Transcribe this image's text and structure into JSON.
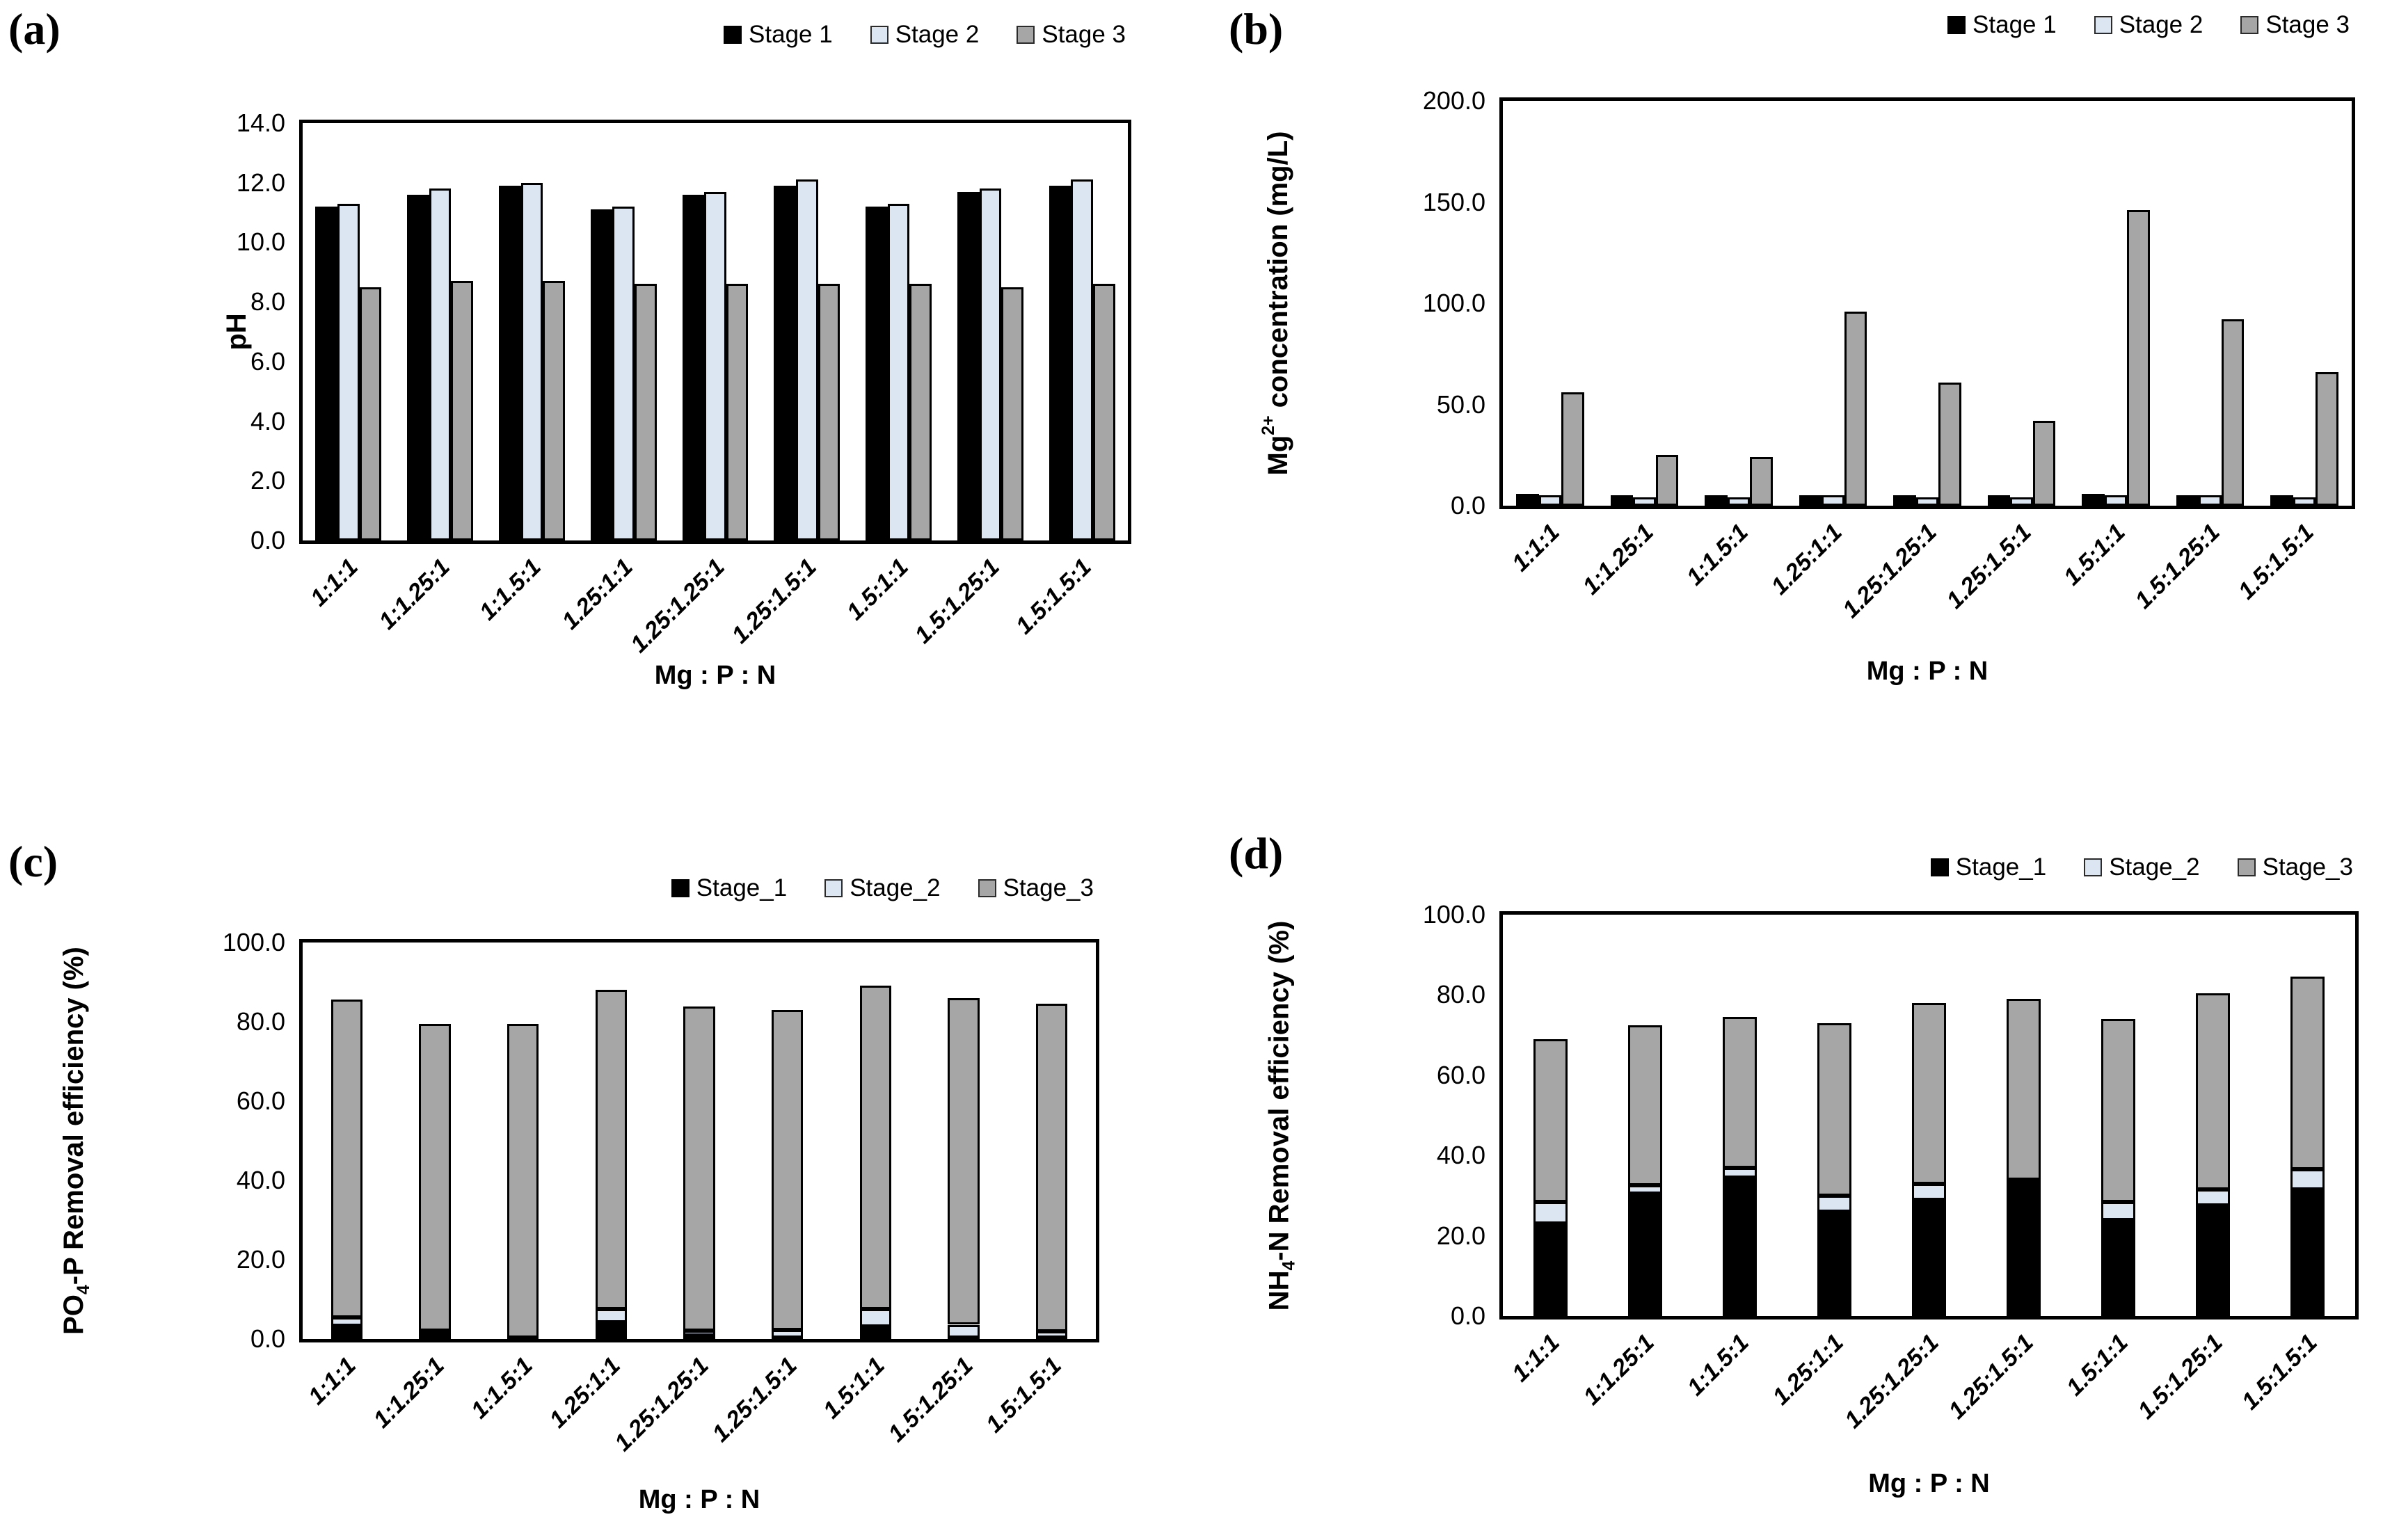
{
  "figure": {
    "panels": [
      {
        "id": "a",
        "letter": "(a)",
        "x_title": "Mg : P : N",
        "legend": [
          "Stage 1",
          "Stage 2",
          "Stage 3"
        ],
        "y_label_parts": [
          {
            "t": "pH"
          }
        ],
        "y_tick_decimals": 1
      },
      {
        "id": "b",
        "letter": "(b)",
        "x_title": "Mg : P : N",
        "legend": [
          "Stage 1",
          "Stage 2",
          "Stage 3"
        ],
        "y_label_parts": [
          {
            "t": "Mg"
          },
          {
            "sup": "2+"
          },
          {
            "t": " concentration (mg/L)"
          }
        ],
        "y_tick_decimals": 1
      },
      {
        "id": "c",
        "letter": "(c)",
        "x_title": "Mg : P : N",
        "legend": [
          "Stage_1",
          "Stage_2",
          "Stage_3"
        ],
        "y_label_parts": [
          {
            "t": "PO"
          },
          {
            "sub": "4"
          },
          {
            "t": "-P Removal efficiency (%)"
          }
        ],
        "y_tick_decimals": 1
      },
      {
        "id": "d",
        "letter": "(d)",
        "x_title": "Mg : P : N",
        "legend": [
          "Stage_1",
          "Stage_2",
          "Stage_3"
        ],
        "y_label_parts": [
          {
            "t": "NH"
          },
          {
            "sub": "4"
          },
          {
            "t": "-N Removal efficiency (%)"
          }
        ],
        "y_tick_decimals": 1
      }
    ]
  },
  "colors": {
    "stage1": "#000000",
    "stage2": "#dce6f2",
    "stage3": "#a6a6a6",
    "bar_border": "#000000",
    "swatch_border": "#2b2b2b",
    "frame": "#000000"
  },
  "chart_data": [
    {
      "type": "bar",
      "mode": "grouped",
      "panel": "a",
      "title": "",
      "xlabel": "Mg : P : N",
      "ylabel": "pH",
      "ylim": [
        0,
        14
      ],
      "ytick_step": 2,
      "grid": false,
      "legend_position": "top-right",
      "categories": [
        "1:1:1",
        "1:1.25:1",
        "1:1.5:1",
        "1.25:1:1",
        "1.25:1.25:1",
        "1.25:1.5:1",
        "1.5:1:1",
        "1.5:1.25:1",
        "1.5:1.5:1"
      ],
      "series": [
        {
          "name": "Stage 1",
          "color_key": "stage1",
          "values": [
            11.2,
            11.6,
            11.9,
            11.1,
            11.6,
            11.9,
            11.2,
            11.7,
            11.9
          ]
        },
        {
          "name": "Stage 2",
          "color_key": "stage2",
          "values": [
            11.3,
            11.8,
            12.0,
            11.2,
            11.7,
            12.1,
            11.3,
            11.8,
            12.1
          ]
        },
        {
          "name": "Stage 3",
          "color_key": "stage3",
          "values": [
            8.5,
            8.7,
            8.7,
            8.6,
            8.6,
            8.6,
            8.6,
            8.5,
            8.6
          ]
        }
      ]
    },
    {
      "type": "bar",
      "mode": "grouped",
      "panel": "b",
      "title": "",
      "xlabel": "Mg : P : N",
      "ylabel": "Mg²⁺ concentration (mg/L)",
      "ylim": [
        0,
        200
      ],
      "ytick_step": 50,
      "grid": false,
      "legend_position": "top-right",
      "categories": [
        "1:1:1",
        "1:1.25:1",
        "1:1.5:1",
        "1.25:1:1",
        "1.25:1.25:1",
        "1.25:1.5:1",
        "1.5:1:1",
        "1.5:1.25:1",
        "1.5:1.5:1"
      ],
      "series": [
        {
          "name": "Stage 1",
          "color_key": "stage1",
          "values": [
            6,
            5,
            5,
            5,
            5,
            5,
            6,
            5,
            5
          ]
        },
        {
          "name": "Stage 2",
          "color_key": "stage2",
          "values": [
            5,
            4,
            4,
            5,
            4,
            4,
            5,
            5,
            4
          ]
        },
        {
          "name": "Stage 3",
          "color_key": "stage3",
          "values": [
            56,
            25,
            24,
            96,
            61,
            42,
            146,
            92,
            66
          ]
        }
      ]
    },
    {
      "type": "bar",
      "mode": "stacked",
      "panel": "c",
      "title": "",
      "xlabel": "Mg : P : N",
      "ylabel": "PO₄-P Removal efficiency (%)",
      "ylim": [
        0,
        100
      ],
      "ytick_step": 20,
      "grid": false,
      "legend_position": "top-right",
      "categories": [
        "1:1:1",
        "1:1.25:1",
        "1:1.5:1",
        "1.25:1:1",
        "1.25:1.25:1",
        "1.25:1.5:1",
        "1.5:1:1",
        "1.5:1.25:1",
        "1.5:1.5:1"
      ],
      "series": [
        {
          "name": "Stage_1",
          "color_key": "stage1",
          "values": [
            3.3,
            1.2,
            0.2,
            4.2,
            0.8,
            0.3,
            3.2,
            0.4,
            0.3
          ]
        },
        {
          "name": "Stage_2",
          "color_key": "stage2",
          "values": [
            2.2,
            0.9,
            0.2,
            3.3,
            1.3,
            2.0,
            4.3,
            3.2,
            1.7
          ]
        },
        {
          "name": "Stage_3",
          "color_key": "stage3",
          "values": [
            80.2,
            77.4,
            79.1,
            80.6,
            81.7,
            80.6,
            81.6,
            82.3,
            82.5
          ]
        }
      ]
    },
    {
      "type": "bar",
      "mode": "stacked",
      "panel": "d",
      "title": "",
      "xlabel": "Mg : P : N",
      "ylabel": "NH₄-N Removal efficiency (%)",
      "ylim": [
        0,
        100
      ],
      "ytick_step": 20,
      "grid": false,
      "legend_position": "top-right",
      "categories": [
        "1:1:1",
        "1:1.25:1",
        "1:1.5:1",
        "1.25:1:1",
        "1.25:1.25:1",
        "1.25:1.5:1",
        "1.5:1:1",
        "1.5:1.25:1",
        "1.5:1.5:1"
      ],
      "series": [
        {
          "name": "Stage_1",
          "color_key": "stage1",
          "values": [
            23,
            30.5,
            34.5,
            26,
            29,
            33,
            24,
            27.5,
            31.5
          ]
        },
        {
          "name": "Stage_2",
          "color_key": "stage2",
          "values": [
            5.5,
            2.0,
            2.5,
            4.0,
            4.0,
            1.0,
            4.5,
            4.0,
            5.0
          ]
        },
        {
          "name": "Stage_3",
          "color_key": "stage3",
          "values": [
            40.5,
            40.0,
            37.5,
            43.0,
            45.0,
            45.0,
            45.5,
            49.0,
            48.0
          ]
        }
      ]
    }
  ]
}
